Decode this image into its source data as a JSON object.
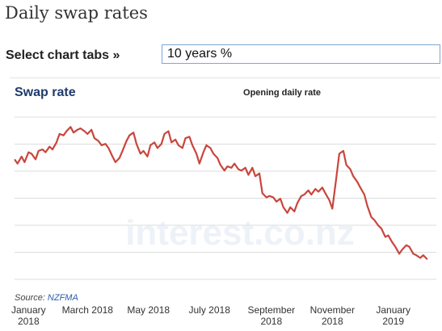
{
  "page": {
    "title": "Daily swap rates",
    "tabs_label": "Select chart tabs »",
    "tabs_selected": "10 years %"
  },
  "colors": {
    "line": "#c9463d",
    "grid": "#dddddd",
    "title": "#1f3a6b",
    "source_link": "#2a5db0"
  },
  "watermark": "interest.co.nz",
  "chart_data": {
    "type": "line",
    "title": "Swap rate",
    "subtitle": "Opening daily rate",
    "source_label": "Source:",
    "source_link": "NZFMA",
    "grid": true,
    "y_axis_labels_shown": false,
    "ylim": [
      2.2,
      3.3
    ],
    "x_ticks": [
      {
        "date": "2018-01-01",
        "label": [
          "January",
          "2018"
        ]
      },
      {
        "date": "2018-03-01",
        "label": [
          "March 2018"
        ]
      },
      {
        "date": "2018-05-01",
        "label": [
          "May 2018"
        ]
      },
      {
        "date": "2018-07-01",
        "label": [
          "July 2018"
        ]
      },
      {
        "date": "2018-09-01",
        "label": [
          "September",
          "2018"
        ]
      },
      {
        "date": "2018-11-01",
        "label": [
          "November",
          "2018"
        ]
      },
      {
        "date": "2019-01-01",
        "label": [
          "January",
          "2019"
        ]
      }
    ],
    "series": [
      {
        "x": [
          "2017-12-18",
          "2017-12-21",
          "2017-12-25",
          "2017-12-28",
          "2018-01-01",
          "2018-01-04",
          "2018-01-08",
          "2018-01-11",
          "2018-01-15",
          "2018-01-18",
          "2018-01-22",
          "2018-01-25",
          "2018-01-29",
          "2018-02-01",
          "2018-02-05",
          "2018-02-08",
          "2018-02-12",
          "2018-02-15",
          "2018-02-19",
          "2018-02-22",
          "2018-02-26",
          "2018-03-01",
          "2018-03-05",
          "2018-03-08",
          "2018-03-12",
          "2018-03-15",
          "2018-03-19",
          "2018-03-22",
          "2018-03-26",
          "2018-03-29",
          "2018-04-02",
          "2018-04-05",
          "2018-04-09",
          "2018-04-12",
          "2018-04-16",
          "2018-04-19",
          "2018-04-23",
          "2018-04-26",
          "2018-04-30",
          "2018-05-03",
          "2018-05-07",
          "2018-05-10",
          "2018-05-14",
          "2018-05-17",
          "2018-05-21",
          "2018-05-24",
          "2018-05-28",
          "2018-05-31",
          "2018-06-04",
          "2018-06-07",
          "2018-06-11",
          "2018-06-14",
          "2018-06-18",
          "2018-06-21",
          "2018-06-25",
          "2018-06-28",
          "2018-07-02",
          "2018-07-05",
          "2018-07-09",
          "2018-07-12",
          "2018-07-16",
          "2018-07-19",
          "2018-07-23",
          "2018-07-26",
          "2018-07-30",
          "2018-08-02",
          "2018-08-06",
          "2018-08-09",
          "2018-08-13",
          "2018-08-16",
          "2018-08-20",
          "2018-08-23",
          "2018-08-27",
          "2018-08-30",
          "2018-09-03",
          "2018-09-06",
          "2018-09-10",
          "2018-09-13",
          "2018-09-17",
          "2018-09-20",
          "2018-09-24",
          "2018-09-27",
          "2018-10-01",
          "2018-10-04",
          "2018-10-08",
          "2018-10-11",
          "2018-10-15",
          "2018-10-18",
          "2018-10-22",
          "2018-10-25",
          "2018-10-29",
          "2018-11-01",
          "2018-11-05",
          "2018-11-08",
          "2018-11-12",
          "2018-11-15",
          "2018-11-19",
          "2018-11-22",
          "2018-11-26",
          "2018-11-29",
          "2018-12-03",
          "2018-12-06",
          "2018-12-10",
          "2018-12-13",
          "2018-12-17",
          "2018-12-20",
          "2018-12-24",
          "2018-12-27",
          "2018-12-31",
          "2019-01-03",
          "2019-01-07",
          "2019-01-10",
          "2019-01-14",
          "2019-01-17",
          "2019-01-21",
          "2019-01-24",
          "2019-01-28",
          "2019-01-31",
          "2019-02-04"
        ],
        "y": [
          3.0,
          2.97,
          3.02,
          2.98,
          3.05,
          3.04,
          3.0,
          3.06,
          3.07,
          3.05,
          3.09,
          3.07,
          3.12,
          3.18,
          3.17,
          3.2,
          3.23,
          3.19,
          3.21,
          3.22,
          3.2,
          3.18,
          3.21,
          3.15,
          3.13,
          3.1,
          3.11,
          3.08,
          3.02,
          2.98,
          3.01,
          3.06,
          3.13,
          3.17,
          3.19,
          3.11,
          3.04,
          3.06,
          3.02,
          3.1,
          3.12,
          3.08,
          3.11,
          3.18,
          3.2,
          3.12,
          3.14,
          3.1,
          3.08,
          3.15,
          3.16,
          3.1,
          3.04,
          2.97,
          3.05,
          3.1,
          3.08,
          3.04,
          3.01,
          2.96,
          2.92,
          2.95,
          2.94,
          2.97,
          2.93,
          2.92,
          2.94,
          2.89,
          2.94,
          2.88,
          2.9,
          2.76,
          2.73,
          2.74,
          2.73,
          2.7,
          2.72,
          2.66,
          2.62,
          2.66,
          2.63,
          2.69,
          2.74,
          2.75,
          2.78,
          2.75,
          2.79,
          2.77,
          2.8,
          2.76,
          2.71,
          2.65,
          2.87,
          3.04,
          3.06,
          2.96,
          2.93,
          2.88,
          2.84,
          2.8,
          2.75,
          2.67,
          2.59,
          2.57,
          2.53,
          2.51,
          2.45,
          2.46,
          2.41,
          2.38,
          2.33,
          2.36,
          2.39,
          2.38,
          2.33,
          2.32,
          2.3,
          2.32,
          2.29
        ]
      }
    ]
  }
}
